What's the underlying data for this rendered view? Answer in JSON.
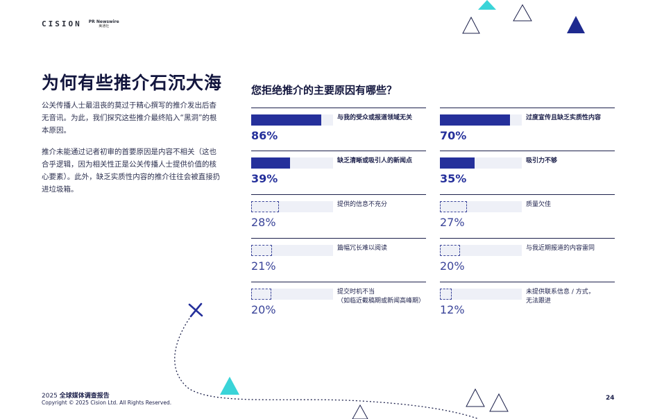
{
  "header": {
    "logo_main": "CISION",
    "logo_sub_top": "PR Newswire",
    "logo_sub_bottom": "美通社"
  },
  "left": {
    "title": "为何有些推介石沉大海",
    "para1": "公关传播人士最沮丧的莫过于精心撰写的推介发出后杳无音讯。为此，我们探究这些推介最终陷入“黑洞”的根本原因。",
    "para2": "推介未能通过记者初审的首要原因是内容不相关（这也合乎逻辑，因为相关性正是公关传播人士提供价值的核心要素）。此外，缺乏实质性内容的推介往往会被直接扔进垃圾箱。"
  },
  "chart_data": {
    "type": "bar",
    "title": "您拒绝推介的主要原因有哪些？",
    "categories": [
      "与我的受众或报道领域无关",
      "过度宣传且缺乏实质性内容",
      "缺乏清晰或吸引人的新闻点",
      "吸引力不够",
      "提供的信息不充分",
      "质量欠佳",
      "篇幅冗长难以阅读",
      "与我近期报道的内容雷同",
      "提交时机不当（如临近截稿期或新闻高峰期）",
      "未提供联系信息 / 方式，无法跟进"
    ],
    "values": [
      86,
      70,
      39,
      35,
      28,
      27,
      21,
      20,
      20,
      12
    ],
    "items": [
      {
        "label": "与我的受众或报道领域无关",
        "label2": "",
        "value": 86,
        "pct": "86%",
        "highlight": true
      },
      {
        "label": "过度宣传且缺乏实质性内容",
        "label2": "",
        "value": 70,
        "pct": "70%",
        "highlight": true
      },
      {
        "label": "缺乏清晰或吸引人的新闻点",
        "label2": "",
        "value": 39,
        "pct": "39%",
        "highlight": true
      },
      {
        "label": "吸引力不够",
        "label2": "",
        "value": 35,
        "pct": "35%",
        "highlight": true
      },
      {
        "label": "提供的信息不充分",
        "label2": "",
        "value": 28,
        "pct": "28%",
        "highlight": false
      },
      {
        "label": "质量欠佳",
        "label2": "",
        "value": 27,
        "pct": "27%",
        "highlight": false
      },
      {
        "label": "篇幅冗长难以阅读",
        "label2": "",
        "value": 21,
        "pct": "21%",
        "highlight": false
      },
      {
        "label": "与我近期报道的内容雷同",
        "label2": "",
        "value": 20,
        "pct": "20%",
        "highlight": false
      },
      {
        "label": "提交时机不当",
        "label2": "（如临近截稿期或新闻高峰期）",
        "value": 20,
        "pct": "20%",
        "highlight": false
      },
      {
        "label": "未提供联系信息 / 方式，",
        "label2": "无法跟进",
        "value": 12,
        "pct": "12%",
        "highlight": false
      }
    ],
    "xlim": [
      0,
      100
    ],
    "colors": {
      "fill": "#25309b",
      "track": "#eef0f7"
    }
  },
  "footer": {
    "report_year": "2025",
    "report_name": "全球媒体调查报告",
    "copyright": "Copyright © 2025 Cision Ltd. All Rights Reserved.",
    "page_number": "24"
  },
  "decor_colors": {
    "cyan": "#3ad4d8",
    "navy": "#1e2a8f",
    "outline": "#1b1f4a"
  }
}
